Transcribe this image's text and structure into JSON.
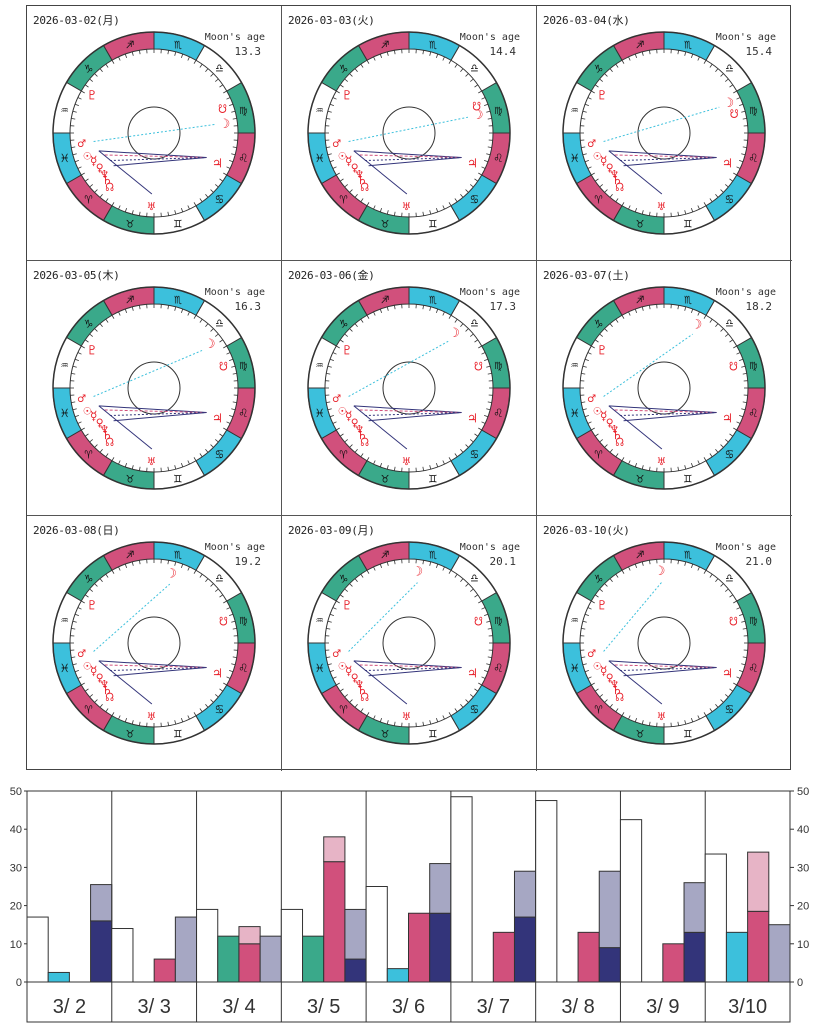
{
  "wheels": [
    {
      "date": "2026-03-02(月)",
      "moon_age_label": "Moon's age",
      "moon_age": "13.3"
    },
    {
      "date": "2026-03-03(火)",
      "moon_age_label": "Moon's age",
      "moon_age": "14.4"
    },
    {
      "date": "2026-03-04(水)",
      "moon_age_label": "Moon's age",
      "moon_age": "15.4"
    },
    {
      "date": "2026-03-05(木)",
      "moon_age_label": "Moon's age",
      "moon_age": "16.3"
    },
    {
      "date": "2026-03-06(金)",
      "moon_age_label": "Moon's age",
      "moon_age": "17.3"
    },
    {
      "date": "2026-03-07(土)",
      "moon_age_label": "Moon's age",
      "moon_age": "18.2"
    },
    {
      "date": "2026-03-08(日)",
      "moon_age_label": "Moon's age",
      "moon_age": "19.2"
    },
    {
      "date": "2026-03-09(月)",
      "moon_age_label": "Moon's age",
      "moon_age": "20.1"
    },
    {
      "date": "2026-03-10(火)",
      "moon_age_label": "Moon's age",
      "moon_age": "21.0"
    }
  ],
  "zodiac": {
    "signs": [
      "♈",
      "♉",
      "♊",
      "♋",
      "♌",
      "♍",
      "♎",
      "♏",
      "♐",
      "♑",
      "♒",
      "♓"
    ],
    "colors": [
      "#d1507c",
      "#3aa98a",
      "#ffffff",
      "#3cc0dc",
      "#d1507c",
      "#3aa98a",
      "#ffffff",
      "#3cc0dc",
      "#d1507c",
      "#3aa98a",
      "#ffffff",
      "#3cc0dc"
    ],
    "planet_color": "#e8202a"
  },
  "planet_glyphs": {
    "sun": "☉",
    "moon": "☽",
    "mercury": "☿",
    "venus": "♀",
    "mars": "♂",
    "jupiter": "♃",
    "saturn": "♄",
    "uranus": "♅",
    "neptune": "♆",
    "pluto": "♇",
    "node": "☊",
    "south_node": "☋"
  },
  "chart_data": {
    "type": "bar",
    "title": "",
    "xlabel": "",
    "ylabel": "",
    "ylim": [
      0,
      50
    ],
    "yticks": [
      0,
      10,
      20,
      30,
      40,
      50
    ],
    "grid": false,
    "categories": [
      "3/ 2",
      "3/ 3",
      "3/ 4",
      "3/ 5",
      "3/ 6",
      "3/ 7",
      "3/ 8",
      "3/ 9",
      "3/10"
    ],
    "series": [
      {
        "name": "white",
        "color": "#ffffff",
        "values": [
          17,
          14,
          19,
          19,
          25,
          48.5,
          47.5,
          42.5,
          33.5
        ]
      },
      {
        "name": "cyan",
        "color": "#3cc0dc",
        "values": [
          2.5,
          0,
          0,
          0,
          3.5,
          0,
          0,
          0,
          13
        ]
      },
      {
        "name": "green",
        "color": "#3aa98a",
        "values": [
          0,
          0,
          12,
          12,
          0,
          0,
          0,
          0,
          0
        ]
      },
      {
        "name": "magenta",
        "color": "#d1507c",
        "values": [
          0,
          6,
          10,
          31.5,
          18,
          13,
          13,
          10,
          18.5
        ]
      },
      {
        "name": "pink",
        "color": "#e7b4c6",
        "stack_on": "magenta",
        "values": [
          0,
          0,
          4.5,
          6.5,
          0,
          0,
          0,
          0,
          15.5
        ]
      },
      {
        "name": "navy",
        "color": "#33347a",
        "values": [
          16,
          0,
          0,
          6,
          18,
          17,
          9,
          13,
          0
        ]
      },
      {
        "name": "gray",
        "color": "#a6a7c3",
        "stack_on": "navy",
        "values": [
          9.5,
          17,
          12,
          13,
          13,
          12,
          20,
          13,
          15
        ]
      }
    ]
  }
}
